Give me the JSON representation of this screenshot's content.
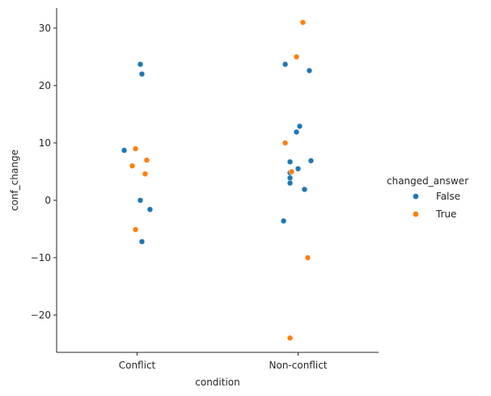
{
  "chart_data": {
    "type": "scatter",
    "subtype": "strip",
    "title": "",
    "xlabel": "condition",
    "ylabel": "conf_change",
    "categories": [
      "Conflict",
      "Non-conflict"
    ],
    "ylim": [
      -26.5,
      33.5
    ],
    "yticks": [
      -20,
      -10,
      0,
      10,
      20,
      30
    ],
    "grid": false,
    "legend": {
      "title": "changed_answer",
      "placement": "right",
      "entries": [
        {
          "label": "False",
          "color": "#1f77b4"
        },
        {
          "label": "True",
          "color": "#ff7f0e"
        }
      ]
    },
    "series": [
      {
        "name": "False",
        "color": "#1f77b4",
        "points": [
          {
            "category": "Conflict",
            "jitter": 0.02,
            "y": 23.7
          },
          {
            "category": "Conflict",
            "jitter": 0.03,
            "y": 22.0
          },
          {
            "category": "Conflict",
            "jitter": -0.08,
            "y": 8.7
          },
          {
            "category": "Conflict",
            "jitter": 0.02,
            "y": 0.0
          },
          {
            "category": "Conflict",
            "jitter": 0.08,
            "y": -1.6
          },
          {
            "category": "Conflict",
            "jitter": 0.03,
            "y": -7.2
          },
          {
            "category": "Non-conflict",
            "jitter": -0.08,
            "y": 23.7
          },
          {
            "category": "Non-conflict",
            "jitter": 0.07,
            "y": 22.6
          },
          {
            "category": "Non-conflict",
            "jitter": 0.01,
            "y": 12.9
          },
          {
            "category": "Non-conflict",
            "jitter": -0.01,
            "y": 11.9
          },
          {
            "category": "Non-conflict",
            "jitter": -0.05,
            "y": 6.7
          },
          {
            "category": "Non-conflict",
            "jitter": 0.08,
            "y": 6.9
          },
          {
            "category": "Non-conflict",
            "jitter": 0.0,
            "y": 5.5
          },
          {
            "category": "Non-conflict",
            "jitter": -0.05,
            "y": 4.8
          },
          {
            "category": "Non-conflict",
            "jitter": -0.05,
            "y": 3.9
          },
          {
            "category": "Non-conflict",
            "jitter": -0.05,
            "y": 3.0
          },
          {
            "category": "Non-conflict",
            "jitter": 0.04,
            "y": 1.9
          },
          {
            "category": "Non-conflict",
            "jitter": -0.09,
            "y": -3.6
          }
        ]
      },
      {
        "name": "True",
        "color": "#ff7f0e",
        "points": [
          {
            "category": "Conflict",
            "jitter": -0.01,
            "y": 9.0
          },
          {
            "category": "Conflict",
            "jitter": 0.06,
            "y": 7.0
          },
          {
            "category": "Conflict",
            "jitter": -0.03,
            "y": 6.0
          },
          {
            "category": "Conflict",
            "jitter": 0.05,
            "y": 4.6
          },
          {
            "category": "Conflict",
            "jitter": -0.01,
            "y": -5.1
          },
          {
            "category": "Non-conflict",
            "jitter": 0.03,
            "y": 31.0
          },
          {
            "category": "Non-conflict",
            "jitter": -0.01,
            "y": 25.0
          },
          {
            "category": "Non-conflict",
            "jitter": -0.08,
            "y": 10.0
          },
          {
            "category": "Non-conflict",
            "jitter": -0.04,
            "y": 5.0
          },
          {
            "category": "Non-conflict",
            "jitter": 0.06,
            "y": -10.0
          },
          {
            "category": "Non-conflict",
            "jitter": -0.05,
            "y": -24.0
          }
        ]
      }
    ]
  }
}
